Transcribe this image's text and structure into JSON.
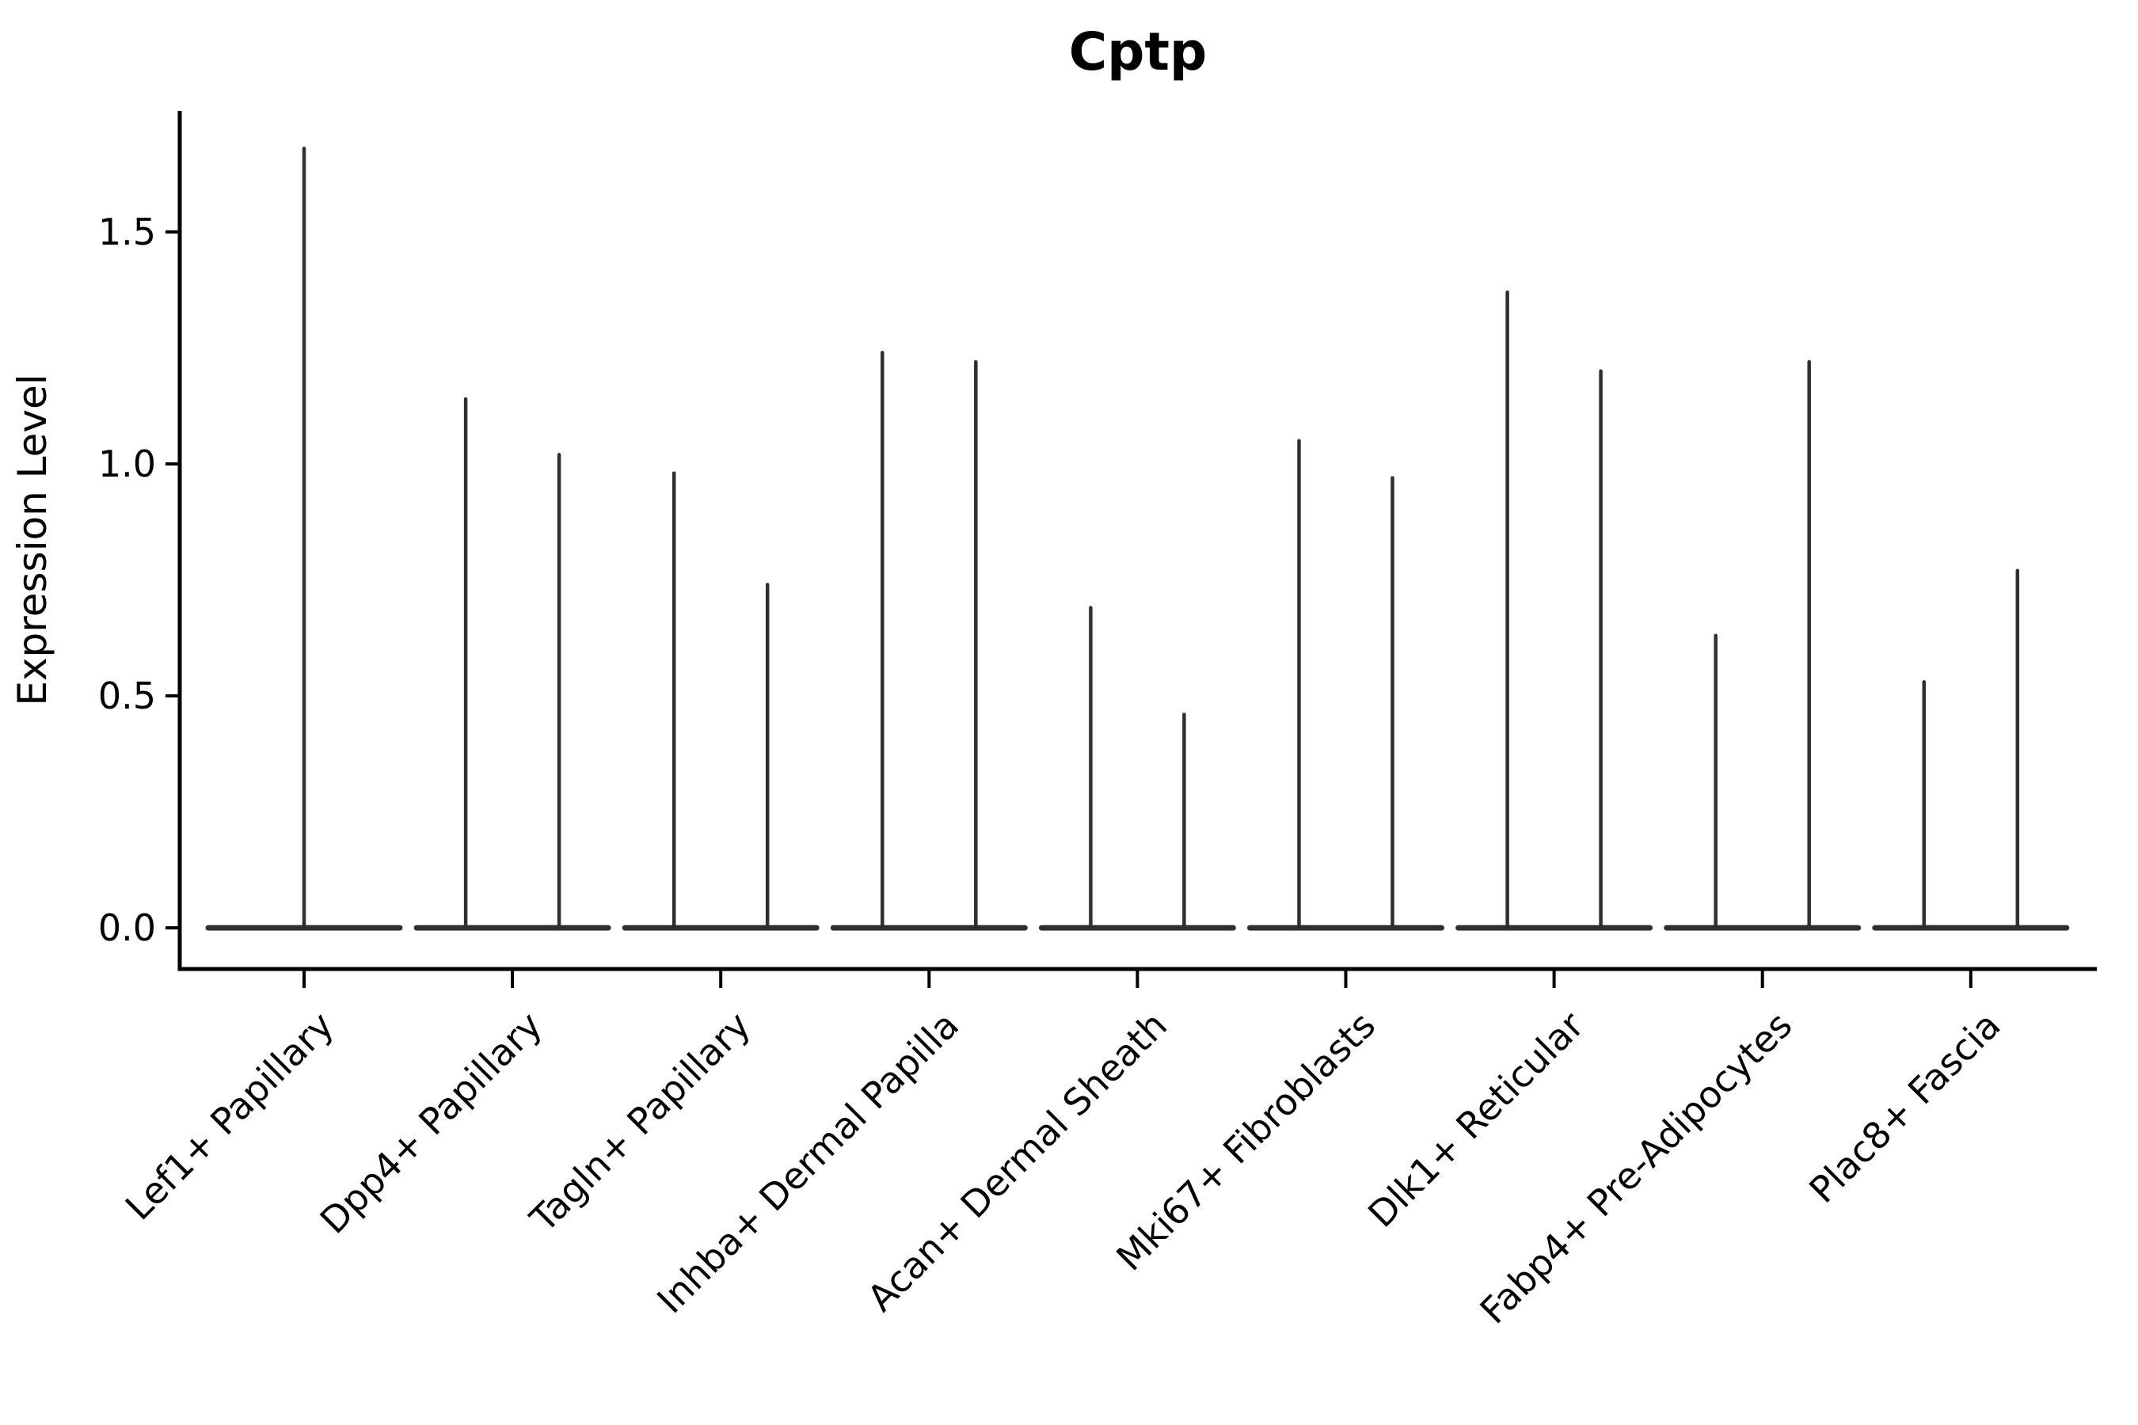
{
  "chart_data": {
    "type": "violin",
    "title": "Cptp",
    "ylabel": "Expression Level",
    "xlabel": "",
    "categories": [
      "Lef1+ Papillary",
      "Dpp4+ Papillary",
      "Tagln+ Papillary",
      "Inhba+ Dermal Papilla",
      "Acan+ Dermal Sheath",
      "Mki67+ Fibroblasts",
      "Dlk1+ Reticular",
      "Fabp4+ Pre-Adipocytes",
      "Plac8+ Fascia"
    ],
    "violins": [
      {
        "category": "Lef1+ Papillary",
        "peaks": [
          1.68
        ]
      },
      {
        "category": "Dpp4+ Papillary",
        "peaks": [
          1.14,
          1.02
        ]
      },
      {
        "category": "Tagln+ Papillary",
        "peaks": [
          0.98,
          0.74
        ]
      },
      {
        "category": "Inhba+ Dermal Papilla",
        "peaks": [
          1.24,
          1.22
        ]
      },
      {
        "category": "Acan+ Dermal Sheath",
        "peaks": [
          0.69,
          0.46
        ]
      },
      {
        "category": "Mki67+ Fibroblasts",
        "peaks": [
          1.05,
          0.97
        ]
      },
      {
        "category": "Dlk1+ Reticular",
        "peaks": [
          1.37,
          1.2
        ]
      },
      {
        "category": "Fabp4+ Pre-Adipocytes",
        "peaks": [
          0.63,
          1.22
        ]
      },
      {
        "category": "Plac8+ Fascia",
        "peaks": [
          0.53,
          0.77
        ]
      }
    ],
    "yticks": {
      "labels": [
        "0.0",
        "0.5",
        "1.0",
        "1.5"
      ],
      "values": [
        0.0,
        0.5,
        1.0,
        1.5
      ]
    },
    "ylim": [
      -0.089,
      1.762
    ],
    "xlim": [
      -0.6,
      8.6
    ],
    "grid": false,
    "legend": "none",
    "x_tick_rotation_deg": 45,
    "violin_shape": "thin spikes rising from flat zero baseline (near-zero density width)",
    "colors": {
      "violin": "#2f2f2f",
      "axis": "#000000",
      "text": "#000000",
      "background": "#ffffff"
    }
  }
}
